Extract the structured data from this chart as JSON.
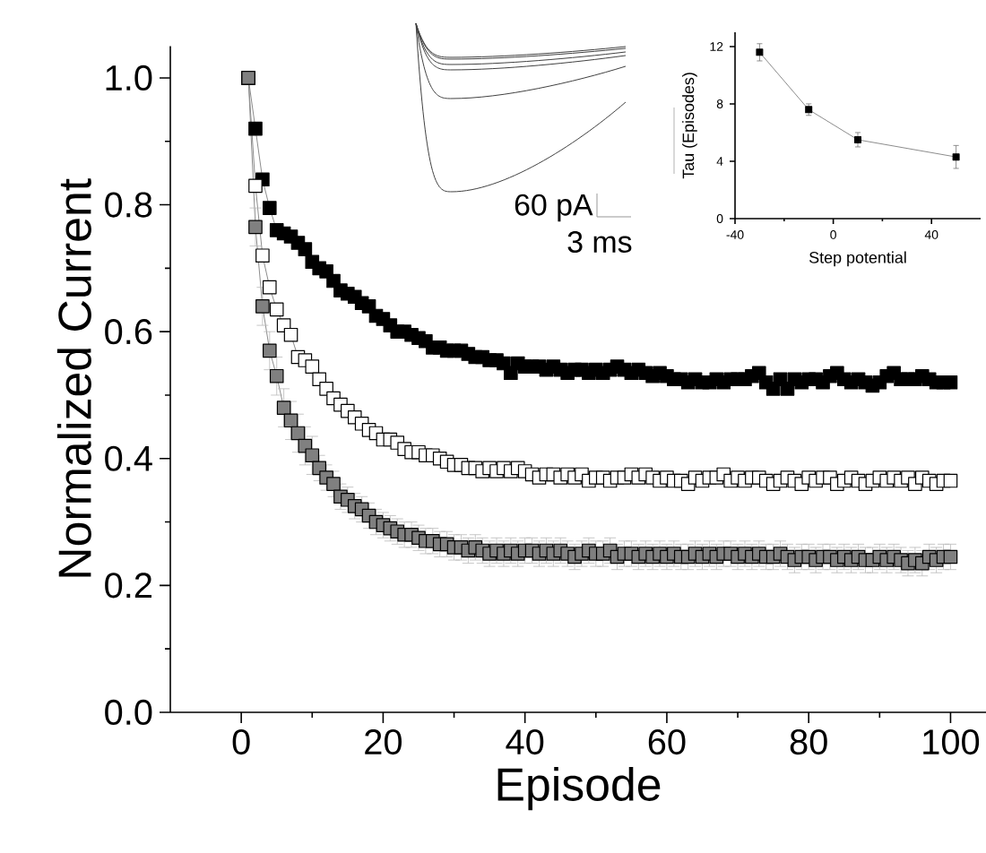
{
  "chart_data": [
    {
      "type": "line",
      "xlabel": "Episode",
      "ylabel": "Normalized Current",
      "marker": "square",
      "x": [
        1,
        2,
        3,
        4,
        5,
        6,
        7,
        8,
        9,
        10,
        11,
        12,
        13,
        14,
        15,
        16,
        17,
        18,
        19,
        20,
        21,
        22,
        23,
        24,
        25,
        26,
        27,
        28,
        29,
        30,
        31,
        32,
        33,
        34,
        35,
        36,
        37,
        38,
        39,
        40,
        41,
        42,
        43,
        44,
        45,
        46,
        47,
        48,
        49,
        50,
        51,
        52,
        53,
        54,
        55,
        56,
        57,
        58,
        59,
        60,
        61,
        62,
        63,
        64,
        65,
        66,
        67,
        68,
        69,
        70,
        71,
        72,
        73,
        74,
        75,
        76,
        77,
        78,
        79,
        80,
        81,
        82,
        83,
        84,
        85,
        86,
        87,
        88,
        89,
        90,
        91,
        92,
        93,
        94,
        95,
        96,
        97,
        98,
        99,
        100
      ],
      "xlim": [
        -10,
        105
      ],
      "ylim": [
        0,
        1.05
      ],
      "xticks": [
        0,
        {
          "value": 10,
          "label": null
        },
        20,
        {
          "value": 30,
          "label": null
        },
        40,
        {
          "value": 50,
          "label": null
        },
        60,
        {
          "value": 70,
          "label": null
        },
        80,
        {
          "value": 90,
          "label": null
        },
        100
      ],
      "yticks": [
        {
          "value": 0,
          "label": "0.0"
        },
        {
          "value": 0.1,
          "label": null
        },
        {
          "value": 0.2,
          "label": "0.2"
        },
        {
          "value": 0.3,
          "label": null
        },
        {
          "value": 0.4,
          "label": "0.4"
        },
        {
          "value": 0.5,
          "label": null
        },
        {
          "value": 0.6,
          "label": "0.6"
        },
        {
          "value": 0.7,
          "label": null
        },
        {
          "value": 0.8,
          "label": "0.8"
        },
        {
          "value": 0.9,
          "label": null
        },
        {
          "value": 1.0,
          "label": "1.0"
        }
      ],
      "series": [
        {
          "color": "#000000",
          "values": [
            1.0,
            0.92,
            0.84,
            0.795,
            0.76,
            0.755,
            0.75,
            0.74,
            0.73,
            0.71,
            0.7,
            0.695,
            0.68,
            0.665,
            0.66,
            0.655,
            0.645,
            0.64,
            0.625,
            0.62,
            0.61,
            0.6,
            0.6,
            0.595,
            0.59,
            0.585,
            0.575,
            0.575,
            0.57,
            0.57,
            0.57,
            0.565,
            0.56,
            0.56,
            0.555,
            0.555,
            0.55,
            0.535,
            0.55,
            0.545,
            0.545,
            0.545,
            0.54,
            0.545,
            0.54,
            0.535,
            0.54,
            0.54,
            0.535,
            0.54,
            0.535,
            0.54,
            0.545,
            0.54,
            0.535,
            0.54,
            0.535,
            0.53,
            0.535,
            0.53,
            0.525,
            0.525,
            0.52,
            0.525,
            0.52,
            0.52,
            0.525,
            0.52,
            0.525,
            0.525,
            0.525,
            0.53,
            0.535,
            0.52,
            0.51,
            0.525,
            0.51,
            0.525,
            0.52,
            0.525,
            0.525,
            0.52,
            0.53,
            0.535,
            0.525,
            0.52,
            0.525,
            0.52,
            0.515,
            0.52,
            0.53,
            0.535,
            0.525,
            0.525,
            0.525,
            0.53,
            0.525,
            0.52,
            0.52,
            0.52
          ]
        },
        {
          "color": "#ffffff",
          "values": [
            1.0,
            0.83,
            0.72,
            0.67,
            0.635,
            0.61,
            0.595,
            0.56,
            0.555,
            0.545,
            0.525,
            0.51,
            0.495,
            0.485,
            0.475,
            0.465,
            0.455,
            0.445,
            0.44,
            0.43,
            0.43,
            0.425,
            0.415,
            0.41,
            0.41,
            0.405,
            0.405,
            0.4,
            0.395,
            0.39,
            0.39,
            0.385,
            0.385,
            0.38,
            0.385,
            0.38,
            0.385,
            0.38,
            0.385,
            0.38,
            0.375,
            0.37,
            0.375,
            0.375,
            0.37,
            0.375,
            0.37,
            0.375,
            0.365,
            0.37,
            0.37,
            0.365,
            0.37,
            0.37,
            0.375,
            0.37,
            0.375,
            0.37,
            0.365,
            0.37,
            0.365,
            0.365,
            0.36,
            0.37,
            0.365,
            0.37,
            0.37,
            0.375,
            0.365,
            0.37,
            0.365,
            0.37,
            0.37,
            0.365,
            0.36,
            0.365,
            0.37,
            0.365,
            0.36,
            0.37,
            0.365,
            0.37,
            0.37,
            0.36,
            0.365,
            0.37,
            0.365,
            0.36,
            0.365,
            0.37,
            0.365,
            0.37,
            0.365,
            0.37,
            0.36,
            0.37,
            0.365,
            0.36,
            0.365,
            0.365
          ]
        },
        {
          "color": "#808080",
          "values": [
            1.0,
            0.765,
            0.64,
            0.57,
            0.53,
            0.48,
            0.46,
            0.44,
            0.42,
            0.405,
            0.385,
            0.37,
            0.36,
            0.34,
            0.335,
            0.325,
            0.32,
            0.31,
            0.3,
            0.295,
            0.29,
            0.285,
            0.28,
            0.28,
            0.275,
            0.27,
            0.27,
            0.265,
            0.265,
            0.26,
            0.26,
            0.255,
            0.26,
            0.255,
            0.25,
            0.255,
            0.25,
            0.255,
            0.25,
            0.255,
            0.255,
            0.25,
            0.255,
            0.25,
            0.255,
            0.25,
            0.245,
            0.25,
            0.255,
            0.25,
            0.25,
            0.255,
            0.245,
            0.25,
            0.25,
            0.245,
            0.25,
            0.245,
            0.25,
            0.245,
            0.25,
            0.245,
            0.245,
            0.25,
            0.245,
            0.25,
            0.245,
            0.25,
            0.25,
            0.245,
            0.25,
            0.245,
            0.25,
            0.245,
            0.245,
            0.25,
            0.245,
            0.24,
            0.245,
            0.245,
            0.24,
            0.245,
            0.245,
            0.24,
            0.245,
            0.24,
            0.245,
            0.24,
            0.24,
            0.245,
            0.24,
            0.245,
            0.24,
            0.235,
            0.24,
            0.235,
            0.245,
            0.24,
            0.245,
            0.245
          ],
          "errors": [
            null,
            0.03,
            0.03,
            0.03,
            0.03,
            0.03,
            0.03,
            0.03,
            0.03,
            0.03,
            0.02,
            0.02,
            0.02,
            0.02,
            0.02,
            0.02,
            0.02,
            0.02,
            0.02,
            0.02,
            0.02,
            0.02,
            0.02,
            0.02,
            0.02,
            0.02,
            0.02,
            0.02,
            0.02,
            0.02,
            0.02,
            0.02,
            0.02,
            0.02,
            0.02,
            0.02,
            0.02,
            0.02,
            0.02,
            0.02,
            0.02,
            0.02,
            0.02,
            0.02,
            0.02,
            0.02,
            0.02,
            0.02,
            0.02,
            0.02,
            0.02,
            0.02,
            0.02,
            0.02,
            0.02,
            0.02,
            0.02,
            0.02,
            0.02,
            0.02,
            0.02,
            0.02,
            0.02,
            0.02,
            0.02,
            0.02,
            0.02,
            0.02,
            0.02,
            0.02,
            0.02,
            0.02,
            0.02,
            0.02,
            0.02,
            0.02,
            0.02,
            0.02,
            0.02,
            0.02,
            0.02,
            0.02,
            0.02,
            0.02,
            0.02,
            0.02,
            0.02,
            0.02,
            0.02,
            0.02,
            0.02,
            0.02,
            0.02,
            0.02,
            0.02,
            0.02,
            0.02,
            0.02,
            0.02,
            0.02
          ]
        }
      ]
    },
    {
      "type": "other",
      "annotations": [
        "60 pA",
        "3 ms"
      ]
    },
    {
      "type": "line",
      "xlabel": "Step potential",
      "ylabel": "Tau (Episodes)",
      "marker": "square",
      "x": [
        -30,
        -10,
        10,
        50
      ],
      "xlim": [
        -40,
        60
      ],
      "ylim": [
        0,
        13
      ],
      "xticks": [
        -40,
        {
          "value": -20,
          "label": null
        },
        0,
        {
          "value": 20,
          "label": null
        },
        40
      ],
      "yticks": [
        0,
        4,
        8,
        12
      ],
      "series": [
        {
          "color": "#000000",
          "values": [
            11.6,
            7.6,
            5.5,
            4.3
          ],
          "errors": [
            0.6,
            0.4,
            0.5,
            0.8
          ]
        }
      ]
    }
  ]
}
